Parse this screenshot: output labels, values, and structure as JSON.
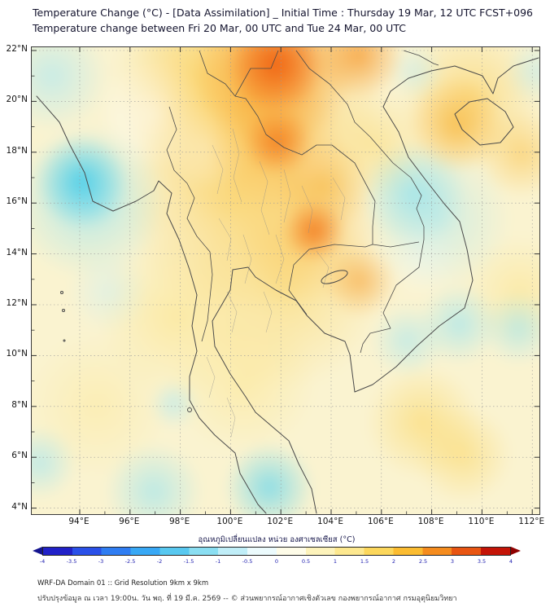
{
  "header": {
    "title_line1": "Temperature Change (°C) - [Data Assimilation] _ Initial Time : Thursday 19 Mar, 12 UTC FCST+096",
    "title_line2": "Temperature change between Fri 20 Mar, 00 UTC and Tue 24 Mar, 00 UTC"
  },
  "map": {
    "y_axis_labels": [
      "22°N",
      "20°N",
      "18°N",
      "16°N",
      "14°N",
      "12°N",
      "10°N",
      "8°N",
      "6°N",
      "4°N"
    ],
    "x_axis_labels": [
      "94°E",
      "96°E",
      "98°E",
      "100°E",
      "102°E",
      "104°E",
      "106°E",
      "108°E",
      "110°E",
      "112°E"
    ]
  },
  "colorbar": {
    "label": "อุณหภูมิเปลี่ยนแปลง หน่วย องศาเซลเซียส (°C)",
    "unit": "°C",
    "range_min": -4,
    "range_max": 4,
    "tick_labels": [
      "-4",
      "-3.5",
      "-3",
      "-2.5",
      "-2",
      "-1.5",
      "-1",
      "-0.5",
      "0",
      "0.5",
      "1",
      "1.5",
      "2",
      "2.5",
      "3",
      "3.5",
      "4"
    ],
    "band_colors": [
      "#2121c8",
      "#2a50e8",
      "#2f7df2",
      "#38a8f5",
      "#58c8f0",
      "#8adef2",
      "#c0eef8",
      "#ecfbfd",
      "#fefce8",
      "#fdf3bb",
      "#fde88f",
      "#fcd75c",
      "#fbbc31",
      "#f58c1e",
      "#e85512",
      "#c41407"
    ],
    "arrow_left_color": "#14148f",
    "arrow_right_color": "#8f0000"
  },
  "footer": {
    "line1": "WRF-DA Domain 01 :: Grid Resolution 9km x 9km",
    "line2": "ปรับปรุงข้อมูล ณ เวลา 19:00น. วัน พฤ. ที่ 19 มี.ค. 2569 -- © ส่วนพยากรณ์อากาศเชิงตัวเลข กองพยากรณ์อากาศ กรมอุตุนิยมวิทยา"
  }
}
